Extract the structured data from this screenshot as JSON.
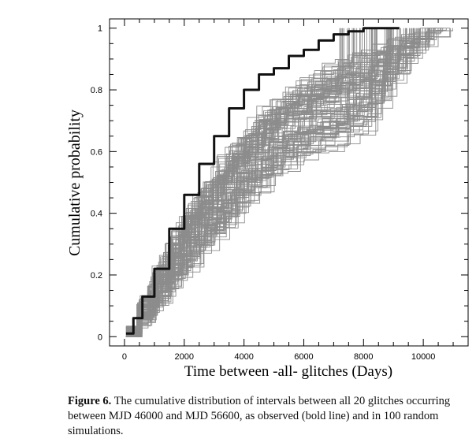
{
  "caption": {
    "label": "Figure 6.",
    "text": "The cumulative distribution of intervals between all 20 glitches occurring between MJD 46000 and MJD 56600, as observed (bold line) and in 100 random simulations."
  },
  "chart_data": {
    "type": "line",
    "xlabel": "Time between -all- glitches  (Days)",
    "ylabel": "Cumulative probability",
    "xlim": [
      -500,
      11500
    ],
    "ylim": [
      -0.03,
      1.03
    ],
    "xticks": [
      0,
      2000,
      4000,
      6000,
      8000,
      10000
    ],
    "xtick_labels": [
      "0",
      "2000",
      "4000",
      "6000",
      "8000",
      "10000"
    ],
    "yticks": [
      0,
      0.2,
      0.4,
      0.6,
      0.8,
      1
    ],
    "ytick_labels": [
      "0",
      "0.2",
      "0.4",
      "0.6",
      "0.8",
      "1"
    ],
    "grid": false,
    "colors": {
      "observed": "#111111",
      "simulations": "#8c8c8c"
    },
    "series": [
      {
        "role": "observed",
        "x": [
          50,
          300,
          600,
          1000,
          1500,
          2000,
          2500,
          3000,
          3500,
          4000,
          4500,
          5000,
          5500,
          6000,
          6500,
          7000,
          7500,
          8000,
          8500,
          9200
        ],
        "y": [
          0.01,
          0.06,
          0.13,
          0.22,
          0.35,
          0.46,
          0.56,
          0.65,
          0.74,
          0.8,
          0.85,
          0.87,
          0.91,
          0.93,
          0.96,
          0.98,
          0.99,
          1.0,
          1.0,
          1.0
        ]
      },
      {
        "role": "simulations",
        "count": 100,
        "envelope_x": [
          0,
          1000,
          2000,
          3000,
          4000,
          5000,
          6000,
          7000,
          8000,
          9000,
          10000,
          11000
        ],
        "envelope_low": [
          0.0,
          0.08,
          0.18,
          0.27,
          0.39,
          0.47,
          0.53,
          0.56,
          0.62,
          0.82,
          0.95,
          1.0
        ],
        "envelope_mid": [
          0.0,
          0.16,
          0.29,
          0.43,
          0.55,
          0.66,
          0.75,
          0.83,
          0.9,
          0.95,
          0.99,
          1.0
        ],
        "envelope_high": [
          0.0,
          0.25,
          0.46,
          0.61,
          0.74,
          0.83,
          0.9,
          0.95,
          0.98,
          0.995,
          1.0,
          1.0
        ],
        "end_x_range": [
          7200,
          11000
        ]
      }
    ]
  }
}
